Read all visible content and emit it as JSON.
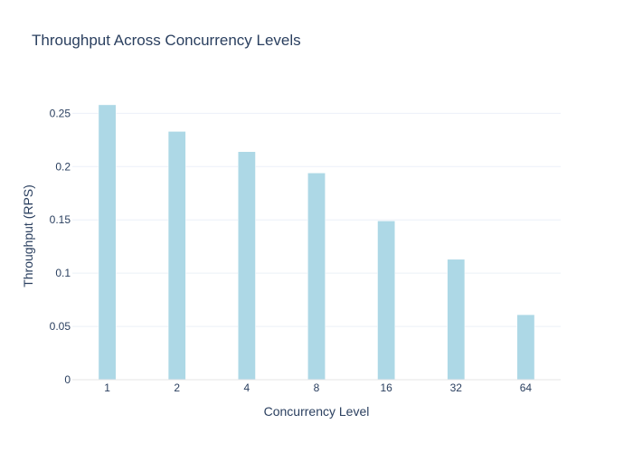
{
  "chart_data": {
    "type": "bar",
    "title": "Throughput Across Concurrency Levels",
    "xlabel": "Concurrency Level",
    "ylabel": "Throughput (RPS)",
    "categories": [
      "1",
      "2",
      "4",
      "8",
      "16",
      "32",
      "64"
    ],
    "values": [
      0.258,
      0.233,
      0.214,
      0.194,
      0.149,
      0.113,
      0.061
    ],
    "yticks": [
      0,
      0.05,
      0.1,
      0.15,
      0.2,
      0.25
    ],
    "ytick_labels": [
      "0",
      "0.05",
      "0.1",
      "0.15",
      "0.2",
      "0.25"
    ],
    "ylim": [
      0,
      0.2715
    ],
    "grid": true,
    "bar_color": "#add8e6",
    "bar_outline": "#ffffff"
  }
}
